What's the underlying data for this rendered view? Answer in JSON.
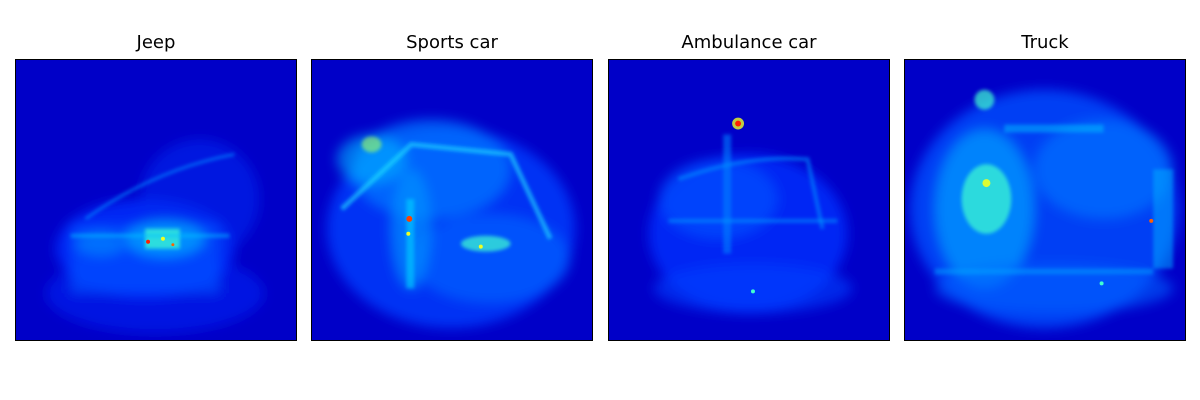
{
  "figure": {
    "colormap": "jet",
    "panels": [
      {
        "id": "jeep",
        "title": "Jeep"
      },
      {
        "id": "sports",
        "title": "Sports car"
      },
      {
        "id": "ambulance",
        "title": "Ambulance car"
      },
      {
        "id": "truck",
        "title": "Truck"
      }
    ],
    "colors": {
      "background_low": "#0000c8",
      "mid": "#00a0ff",
      "high_cyan": "#40ffd0",
      "hot_yellow": "#f0ff20",
      "peak_red": "#ff2000"
    }
  }
}
